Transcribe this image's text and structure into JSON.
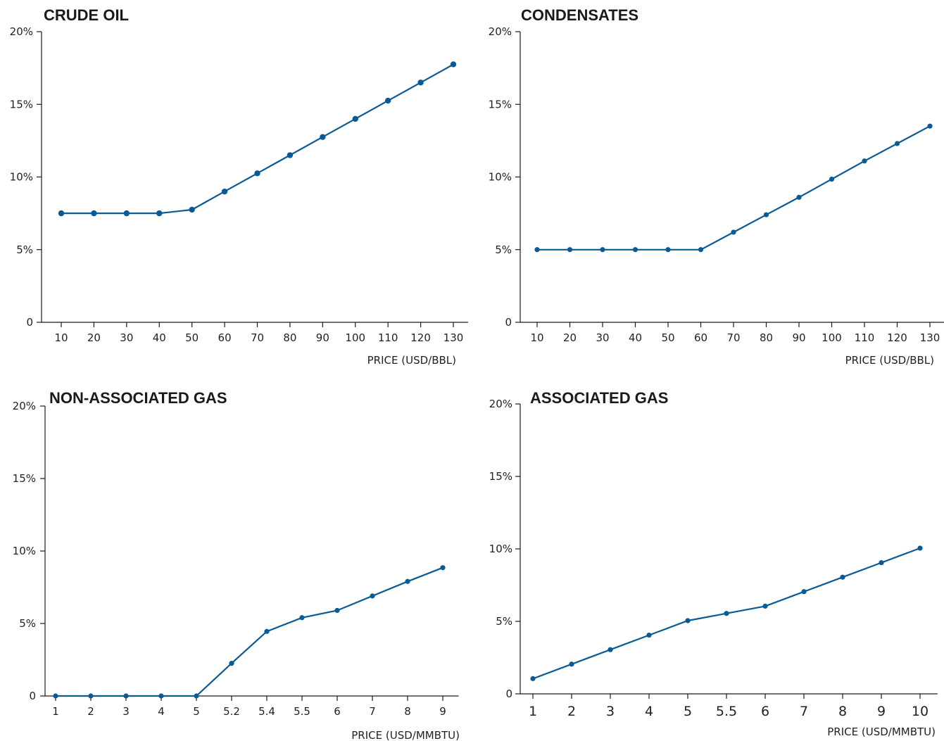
{
  "colors": {
    "series": "#0a5a96",
    "axis": "#1a1a1a",
    "text": "#222222"
  },
  "chart_data": [
    {
      "type": "line",
      "title": "CRUDE OIL",
      "xlabel": "PRICE (USD/BBL)",
      "ylabel": "",
      "ylim": [
        0,
        20
      ],
      "yticks": [
        0,
        5,
        10,
        15,
        20
      ],
      "yticklabels": [
        "0",
        "5%",
        "10%",
        "15%",
        "20%"
      ],
      "categories": [
        "10",
        "20",
        "30",
        "40",
        "50",
        "60",
        "70",
        "80",
        "90",
        "100",
        "110",
        "120",
        "130"
      ],
      "series": [
        {
          "values": [
            7.5,
            7.5,
            7.5,
            7.5,
            7.75,
            9.0,
            10.25,
            11.5,
            12.75,
            14.0,
            15.25,
            16.5,
            17.75
          ]
        }
      ]
    },
    {
      "type": "line",
      "title": "CONDENSATES",
      "xlabel": "PRICE (USD/BBL)",
      "ylabel": "",
      "ylim": [
        0,
        20
      ],
      "yticks": [
        0,
        5,
        10,
        15,
        20
      ],
      "yticklabels": [
        "0",
        "5%",
        "10%",
        "15%",
        "20%"
      ],
      "categories": [
        "10",
        "20",
        "30",
        "40",
        "50",
        "60",
        "70",
        "80",
        "90",
        "100",
        "110",
        "120",
        "130"
      ],
      "series": [
        {
          "values": [
            5.0,
            5.0,
            5.0,
            5.0,
            5.0,
            5.0,
            6.2,
            7.4,
            8.6,
            9.85,
            11.1,
            12.3,
            13.5
          ]
        }
      ]
    },
    {
      "type": "line",
      "title": "NON-ASSOCIATED GAS",
      "xlabel": "PRICE (USD/MMBTU)",
      "ylabel": "",
      "ylim": [
        0,
        20
      ],
      "yticks": [
        0,
        5,
        10,
        15,
        20
      ],
      "yticklabels": [
        "0",
        "5%",
        "10%",
        "15%",
        "20%"
      ],
      "categories": [
        "1",
        "2",
        "3",
        "4",
        "5",
        "5.2",
        "5.4",
        "5.5",
        "6",
        "7",
        "8",
        "9"
      ],
      "series": [
        {
          "values": [
            0,
            0,
            0,
            0,
            0,
            2.25,
            4.45,
            5.4,
            5.9,
            6.9,
            7.9,
            8.85
          ]
        }
      ]
    },
    {
      "type": "line",
      "title": "ASSOCIATED GAS",
      "xlabel": "PRICE (USD/MMBTU)",
      "ylabel": "",
      "ylim": [
        0,
        20
      ],
      "yticks": [
        0,
        5,
        10,
        15,
        20
      ],
      "yticklabels": [
        "0",
        "5%",
        "10%",
        "15%",
        "20%"
      ],
      "categories": [
        "1",
        "2",
        "3",
        "4",
        "5",
        "5.5",
        "6",
        "7",
        "8",
        "9",
        "10"
      ],
      "series": [
        {
          "values": [
            1.05,
            2.05,
            3.05,
            4.05,
            5.05,
            5.55,
            6.05,
            7.05,
            8.05,
            9.05,
            10.05
          ]
        }
      ]
    }
  ]
}
